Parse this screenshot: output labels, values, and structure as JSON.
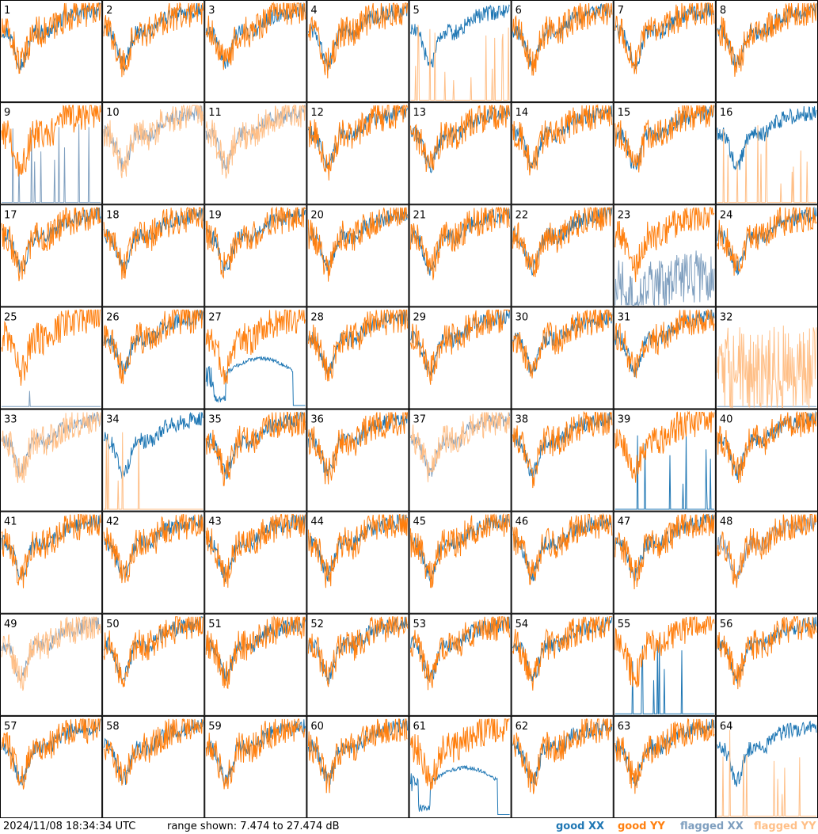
{
  "footer": {
    "timestamp": "2024/11/08 18:34:34 UTC",
    "range": "range shown: 7.474 to 27.474 dB"
  },
  "legend": [
    {
      "label": "good XX",
      "color": "#1f77b4"
    },
    {
      "label": "good YY",
      "color": "#ff7f0e"
    },
    {
      "label": "flagged XX",
      "color": "#7f9fbf"
    },
    {
      "label": "flagged YY",
      "color": "#ffbf87"
    }
  ],
  "chart_data": {
    "type": "line",
    "grid": {
      "rows": 8,
      "cols": 8
    },
    "ylim_db": [
      7.474,
      27.474
    ],
    "panels": [
      {
        "id": "1",
        "xx": "good",
        "yy": "good"
      },
      {
        "id": "2",
        "xx": "good",
        "yy": "good"
      },
      {
        "id": "3",
        "xx": "good",
        "yy": "good"
      },
      {
        "id": "4",
        "xx": "good",
        "yy": "good"
      },
      {
        "id": "5",
        "xx": "good",
        "yy": "flagged",
        "yy_shape": "spikes"
      },
      {
        "id": "6",
        "xx": "good",
        "yy": "good"
      },
      {
        "id": "7",
        "xx": "good",
        "yy": "good"
      },
      {
        "id": "8",
        "xx": "good",
        "yy": "good"
      },
      {
        "id": "9",
        "xx": "flagged",
        "yy": "good",
        "xx_shape": "spikes"
      },
      {
        "id": "10",
        "xx": "flagged",
        "yy": "flagged"
      },
      {
        "id": "11",
        "xx": "flagged",
        "yy": "flagged"
      },
      {
        "id": "12",
        "xx": "good",
        "yy": "good"
      },
      {
        "id": "13",
        "xx": "good",
        "yy": "good"
      },
      {
        "id": "14",
        "xx": "good",
        "yy": "good"
      },
      {
        "id": "15",
        "xx": "good",
        "yy": "good"
      },
      {
        "id": "16",
        "xx": "good",
        "yy": "flagged",
        "yy_shape": "spikes"
      },
      {
        "id": "17",
        "xx": "good",
        "yy": "good"
      },
      {
        "id": "18",
        "xx": "good",
        "yy": "good"
      },
      {
        "id": "19",
        "xx": "good",
        "yy": "good"
      },
      {
        "id": "20",
        "xx": "good",
        "yy": "good"
      },
      {
        "id": "21",
        "xx": "good",
        "yy": "good"
      },
      {
        "id": "22",
        "xx": "good",
        "yy": "good"
      },
      {
        "id": "23",
        "xx": "flagged",
        "yy": "good",
        "xx_shape": "deep"
      },
      {
        "id": "24",
        "xx": "good",
        "yy": "good"
      },
      {
        "id": "25",
        "xx": "flagged",
        "yy": "good",
        "xx_shape": "flat"
      },
      {
        "id": "26",
        "xx": "good",
        "yy": "good"
      },
      {
        "id": "27",
        "xx": "good",
        "yy": "good",
        "xx_shape": "hump"
      },
      {
        "id": "28",
        "xx": "good",
        "yy": "good"
      },
      {
        "id": "29",
        "xx": "good",
        "yy": "good"
      },
      {
        "id": "30",
        "xx": "good",
        "yy": "good"
      },
      {
        "id": "31",
        "xx": "good",
        "yy": "good"
      },
      {
        "id": "32",
        "xx": "flagged",
        "yy": "flagged",
        "xx_shape": "flat",
        "yy_shape": "wild"
      },
      {
        "id": "33",
        "xx": "flagged",
        "yy": "flagged"
      },
      {
        "id": "34",
        "xx": "good",
        "yy": "flagged",
        "yy_shape": "spikes"
      },
      {
        "id": "35",
        "xx": "good",
        "yy": "good"
      },
      {
        "id": "36",
        "xx": "good",
        "yy": "good"
      },
      {
        "id": "37",
        "xx": "flagged",
        "yy": "flagged"
      },
      {
        "id": "38",
        "xx": "good",
        "yy": "good"
      },
      {
        "id": "39",
        "xx": "good",
        "yy": "good",
        "xx_shape": "spikes"
      },
      {
        "id": "40",
        "xx": "good",
        "yy": "good"
      },
      {
        "id": "41",
        "xx": "good",
        "yy": "good"
      },
      {
        "id": "42",
        "xx": "good",
        "yy": "good"
      },
      {
        "id": "43",
        "xx": "good",
        "yy": "good"
      },
      {
        "id": "44",
        "xx": "good",
        "yy": "good"
      },
      {
        "id": "45",
        "xx": "good",
        "yy": "good"
      },
      {
        "id": "46",
        "xx": "good",
        "yy": "good"
      },
      {
        "id": "47",
        "xx": "good",
        "yy": "good"
      },
      {
        "id": "48",
        "xx": "flagged",
        "yy": "good"
      },
      {
        "id": "49",
        "xx": "flagged",
        "yy": "flagged"
      },
      {
        "id": "50",
        "xx": "good",
        "yy": "good"
      },
      {
        "id": "51",
        "xx": "good",
        "yy": "good"
      },
      {
        "id": "52",
        "xx": "good",
        "yy": "good"
      },
      {
        "id": "53",
        "xx": "good",
        "yy": "good"
      },
      {
        "id": "54",
        "xx": "good",
        "yy": "good"
      },
      {
        "id": "55",
        "xx": "good",
        "yy": "good",
        "xx_shape": "spikes"
      },
      {
        "id": "56",
        "xx": "good",
        "yy": "good"
      },
      {
        "id": "57",
        "xx": "good",
        "yy": "good"
      },
      {
        "id": "58",
        "xx": "good",
        "yy": "good"
      },
      {
        "id": "59",
        "xx": "good",
        "yy": "good"
      },
      {
        "id": "60",
        "xx": "good",
        "yy": "good"
      },
      {
        "id": "61",
        "xx": "good",
        "yy": "good",
        "xx_shape": "hump"
      },
      {
        "id": "62",
        "xx": "good",
        "yy": "good"
      },
      {
        "id": "63",
        "xx": "good",
        "yy": "good"
      },
      {
        "id": "64",
        "xx": "good",
        "yy": "flagged",
        "yy_shape": "spikes"
      }
    ]
  }
}
